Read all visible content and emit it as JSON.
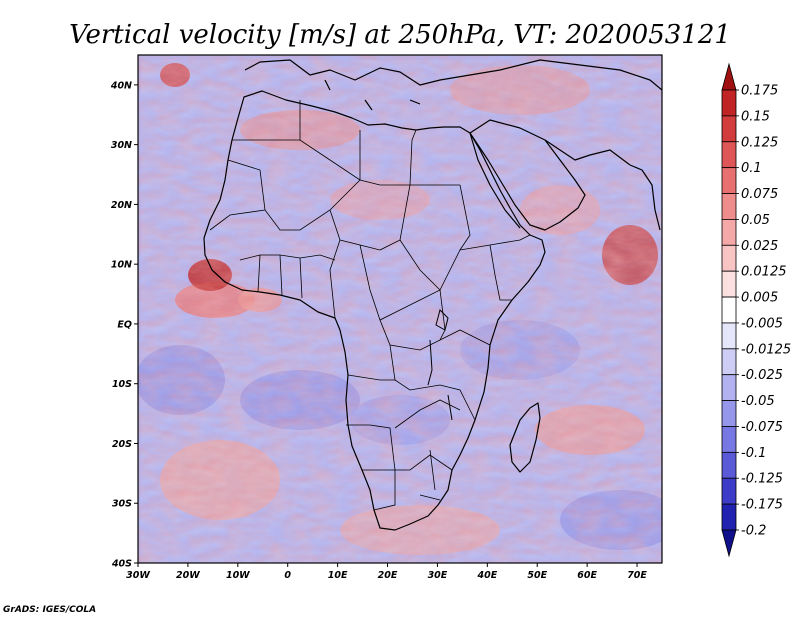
{
  "title": "Vertical velocity [m/s] at 250hPa, VT: 2020053121",
  "credit": "GrADS: IGES/COLA",
  "map": {
    "region": "Africa",
    "lon_range": [
      -30,
      75
    ],
    "lat_range": [
      -40,
      45
    ],
    "lon_ticks": [
      {
        "value": -30,
        "label": "30W"
      },
      {
        "value": -20,
        "label": "20W"
      },
      {
        "value": -10,
        "label": "10W"
      },
      {
        "value": 0,
        "label": "0"
      },
      {
        "value": 10,
        "label": "10E"
      },
      {
        "value": 20,
        "label": "20E"
      },
      {
        "value": 30,
        "label": "30E"
      },
      {
        "value": 40,
        "label": "40E"
      },
      {
        "value": 50,
        "label": "50E"
      },
      {
        "value": 60,
        "label": "60E"
      },
      {
        "value": 70,
        "label": "70E"
      }
    ],
    "lat_ticks": [
      {
        "value": 40,
        "label": "40N"
      },
      {
        "value": 30,
        "label": "30N"
      },
      {
        "value": 20,
        "label": "20N"
      },
      {
        "value": 10,
        "label": "10N"
      },
      {
        "value": 0,
        "label": "EQ"
      },
      {
        "value": -10,
        "label": "10S"
      },
      {
        "value": -20,
        "label": "20S"
      },
      {
        "value": -30,
        "label": "30S"
      },
      {
        "value": -40,
        "label": "40S"
      }
    ]
  },
  "colorbar": {
    "labels": [
      "0.175",
      "0.15",
      "0.125",
      "0.1",
      "0.075",
      "0.05",
      "0.025",
      "0.0125",
      "0.005",
      "-0.005",
      "-0.0125",
      "-0.025",
      "-0.05",
      "-0.075",
      "-0.1",
      "-0.125",
      "-0.175",
      "-0.2"
    ],
    "colors": [
      "#a01010",
      "#c02424",
      "#d23c3c",
      "#de5656",
      "#e87070",
      "#ef8c8c",
      "#f4a8a8",
      "#f8c4c4",
      "#fce0e0",
      "#ffffff",
      "#e6e6fa",
      "#cdcdf5",
      "#b2b2f0",
      "#9696eb",
      "#7878e4",
      "#5a5ad8",
      "#3c3cc8",
      "#2222b0",
      "#10108c"
    ]
  }
}
